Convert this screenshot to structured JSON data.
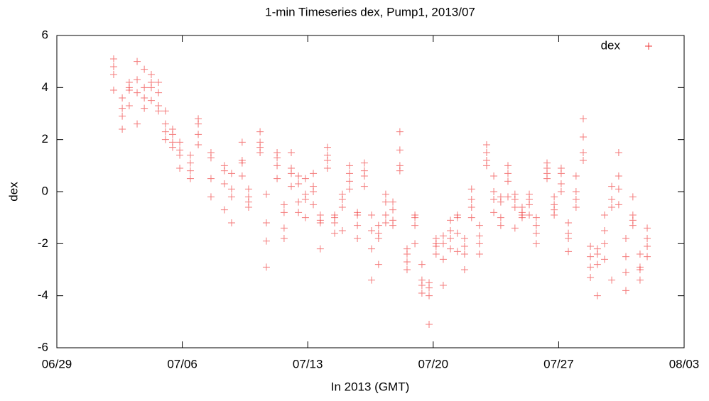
{
  "chart_data": {
    "type": "scatter",
    "title": "1-min Timeseries dex, Pump1, 2013/07",
    "x_label": "In 2013 (GMT)",
    "y_label": "dex",
    "xlim": [
      0,
      35
    ],
    "ylim": [
      -6,
      6
    ],
    "xticks": [
      {
        "value": 0,
        "label": "06/29"
      },
      {
        "value": 7,
        "label": "07/06"
      },
      {
        "value": 14,
        "label": "07/13"
      },
      {
        "value": 21,
        "label": "07/20"
      },
      {
        "value": 28,
        "label": "07/27"
      },
      {
        "value": 35,
        "label": "08/03"
      }
    ],
    "yticks": [
      -6,
      -4,
      -2,
      0,
      2,
      4,
      6
    ],
    "legend": "top-right",
    "series": [
      {
        "name": "dex",
        "color": "#ee3333",
        "x": [
          3.17,
          3.17,
          3.17,
          3.17,
          3.65,
          3.65,
          3.65,
          3.65,
          4.04,
          4.04,
          4.04,
          4.04,
          4.48,
          4.48,
          4.48,
          4.48,
          4.88,
          4.88,
          4.88,
          4.88,
          5.27,
          5.27,
          5.27,
          5.27,
          5.67,
          5.67,
          5.67,
          5.67,
          6.06,
          6.06,
          6.06,
          6.06,
          6.46,
          6.46,
          6.46,
          6.46,
          6.86,
          6.86,
          6.86,
          6.86,
          7.45,
          7.45,
          7.45,
          7.45,
          7.89,
          7.89,
          7.89,
          7.89,
          8.6,
          8.6,
          8.6,
          8.6,
          9.35,
          9.35,
          9.35,
          9.35,
          9.75,
          9.75,
          9.75,
          9.75,
          10.34,
          10.34,
          10.34,
          10.34,
          10.7,
          10.7,
          10.7,
          10.7,
          11.34,
          11.34,
          11.34,
          11.34,
          11.69,
          11.69,
          11.69,
          11.69,
          12.29,
          12.29,
          12.29,
          12.29,
          12.68,
          12.68,
          12.68,
          12.68,
          13.08,
          13.08,
          13.08,
          13.08,
          13.48,
          13.48,
          13.48,
          13.48,
          13.87,
          13.87,
          13.87,
          13.87,
          14.31,
          14.31,
          14.31,
          14.31,
          14.7,
          14.7,
          14.7,
          14.7,
          15.1,
          15.1,
          15.1,
          15.1,
          15.5,
          15.5,
          15.5,
          15.5,
          15.93,
          15.93,
          15.93,
          15.93,
          16.33,
          16.33,
          16.33,
          16.33,
          16.77,
          16.77,
          16.77,
          16.77,
          17.16,
          17.16,
          17.16,
          17.16,
          17.56,
          17.56,
          17.56,
          17.56,
          17.95,
          17.95,
          17.95,
          17.95,
          18.35,
          18.35,
          18.35,
          18.35,
          18.75,
          18.75,
          18.75,
          18.75,
          19.14,
          19.14,
          19.14,
          19.14,
          19.54,
          19.54,
          19.54,
          19.54,
          19.98,
          19.98,
          19.98,
          19.98,
          20.37,
          20.37,
          20.37,
          20.37,
          20.77,
          20.77,
          20.77,
          20.77,
          21.16,
          21.16,
          21.16,
          21.16,
          21.56,
          21.56,
          21.56,
          21.56,
          21.96,
          21.96,
          21.96,
          21.96,
          22.35,
          22.35,
          22.35,
          22.35,
          22.75,
          22.75,
          22.75,
          22.75,
          23.14,
          23.14,
          23.14,
          23.14,
          23.58,
          23.58,
          23.58,
          23.58,
          23.98,
          23.98,
          23.98,
          23.98,
          24.38,
          24.38,
          24.38,
          24.38,
          24.77,
          24.77,
          24.77,
          24.77,
          25.17,
          25.17,
          25.17,
          25.17,
          25.56,
          25.56,
          25.56,
          25.56,
          25.96,
          25.96,
          25.96,
          25.96,
          26.36,
          26.36,
          26.36,
          26.36,
          26.75,
          26.75,
          26.75,
          26.75,
          27.35,
          27.35,
          27.35,
          27.35,
          27.75,
          27.75,
          27.75,
          27.75,
          28.14,
          28.14,
          28.14,
          28.14,
          28.54,
          28.54,
          28.54,
          28.54,
          28.97,
          28.97,
          28.97,
          28.97,
          29.37,
          29.37,
          29.37,
          29.37,
          29.77,
          29.77,
          29.77,
          29.77,
          30.16,
          30.16,
          30.16,
          30.16,
          30.56,
          30.56,
          30.56,
          30.56,
          30.96,
          30.96,
          30.96,
          30.96,
          31.35,
          31.35,
          31.35,
          31.35,
          31.75,
          31.75,
          31.75,
          31.75,
          32.14,
          32.14,
          32.14,
          32.14,
          32.54,
          32.54,
          32.54,
          32.54,
          32.94,
          32.94,
          32.94,
          32.94
        ],
        "values": [
          5.1,
          4.5,
          3.9,
          4.8,
          3.6,
          2.9,
          3.2,
          2.4,
          4.0,
          3.9,
          3.3,
          4.2,
          4.3,
          3.8,
          5.0,
          2.6,
          4.7,
          3.2,
          4.0,
          3.6,
          4.2,
          3.5,
          4.0,
          4.5,
          4.2,
          3.3,
          3.1,
          3.8,
          2.6,
          2.3,
          2.0,
          3.1,
          2.2,
          1.7,
          1.9,
          2.4,
          1.9,
          1.4,
          0.9,
          1.6,
          1.1,
          0.8,
          0.5,
          1.4,
          2.8,
          2.6,
          1.8,
          2.2,
          1.5,
          0.5,
          -0.2,
          1.3,
          0.8,
          0.3,
          -0.7,
          1.0,
          0.7,
          -0.2,
          -1.2,
          0.1,
          1.2,
          1.1,
          0.6,
          1.9,
          0.1,
          -0.4,
          -0.6,
          -0.2,
          2.3,
          1.9,
          1.5,
          1.7,
          -0.1,
          -1.2,
          -1.9,
          -2.9,
          1.5,
          1.3,
          1.0,
          0.5,
          -0.8,
          -1.4,
          -1.8,
          -0.5,
          1.5,
          0.7,
          0.2,
          0.9,
          0.3,
          -0.4,
          -0.8,
          0.6,
          -0.1,
          -0.3,
          0.5,
          -1.0,
          0.7,
          0.2,
          -0.5,
          0.0,
          -0.9,
          -1.1,
          -2.2,
          -1.2,
          1.7,
          1.4,
          0.9,
          1.2,
          -0.9,
          -1.2,
          -1.6,
          -1.0,
          -0.3,
          -0.6,
          -0.1,
          -1.5,
          1.0,
          0.7,
          0.1,
          0.4,
          -0.9,
          -1.3,
          -1.8,
          -0.8,
          1.1,
          0.8,
          0.6,
          0.2,
          -0.9,
          -1.5,
          -2.2,
          -3.4,
          -1.3,
          -1.8,
          -1.6,
          -2.8,
          -0.1,
          -0.4,
          -0.9,
          -1.2,
          -0.7,
          -1.1,
          -1.3,
          -0.4,
          2.3,
          1.6,
          1.0,
          0.8,
          -2.4,
          -2.7,
          -3.0,
          -2.2,
          -0.9,
          -1.3,
          -2.0,
          -1.0,
          -3.6,
          -3.9,
          -2.8,
          -3.4,
          -3.7,
          -3.5,
          -4.0,
          -5.1,
          -2.1,
          -2.0,
          -2.4,
          -1.8,
          -2.0,
          -2.6,
          -1.7,
          -3.6,
          -1.5,
          -1.8,
          -2.2,
          -1.1,
          -1.0,
          -1.6,
          -2.3,
          -0.9,
          -2.1,
          -2.4,
          -1.8,
          -3.0,
          0.1,
          -0.3,
          -0.6,
          -1.0,
          -1.7,
          -2.0,
          -2.4,
          -1.3,
          1.8,
          1.5,
          1.2,
          1.0,
          0.6,
          0.0,
          -0.3,
          -0.8,
          -0.4,
          -1.0,
          -1.3,
          -0.2,
          0.7,
          0.4,
          1.0,
          -0.2,
          -0.1,
          -0.3,
          -0.6,
          -1.4,
          -0.8,
          -1.0,
          -0.9,
          -0.6,
          -0.1,
          -0.5,
          -0.9,
          -0.3,
          -1.3,
          -1.6,
          -2.0,
          -1.0,
          0.7,
          0.9,
          1.1,
          0.5,
          -0.5,
          -0.7,
          -0.9,
          -0.2,
          0.9,
          0.7,
          0.3,
          0.0,
          -1.2,
          -1.8,
          -2.3,
          -1.6,
          0.0,
          -0.3,
          -0.6,
          0.6,
          2.8,
          2.1,
          1.5,
          1.2,
          -2.1,
          -2.5,
          -3.3,
          -2.9,
          -2.2,
          -2.4,
          -2.8,
          -4.0,
          -0.9,
          -1.5,
          -2.0,
          -2.6,
          -0.3,
          -0.6,
          0.2,
          -3.4,
          1.5,
          0.6,
          0.1,
          -0.5,
          -1.8,
          -2.5,
          -3.1,
          -3.8,
          -0.2,
          -0.9,
          -1.1,
          -1.3,
          -2.4,
          -3.0,
          -3.4,
          -2.9,
          -1.4,
          -1.8,
          -2.5,
          -2.1
        ]
      }
    ]
  }
}
